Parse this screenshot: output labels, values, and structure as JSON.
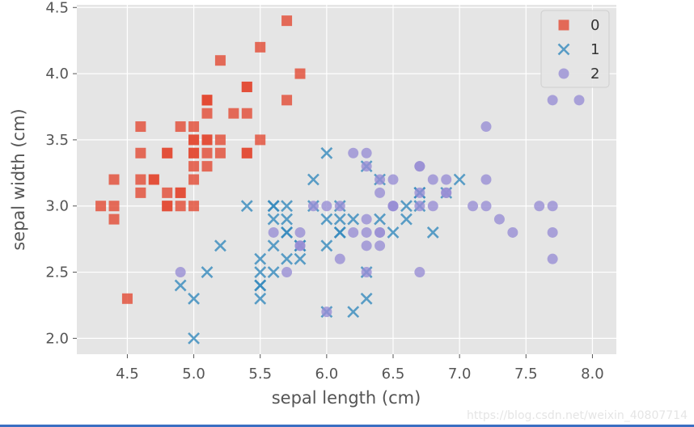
{
  "chart_data": {
    "type": "scatter",
    "title": "",
    "xlabel": "sepal length (cm)",
    "ylabel": "sepal width (cm)",
    "xlim": [
      4.12,
      8.18
    ],
    "ylim": [
      1.88,
      4.52
    ],
    "x_ticks": [
      "4.5",
      "5.0",
      "5.5",
      "6.0",
      "6.5",
      "7.0",
      "7.5",
      "8.0"
    ],
    "y_ticks": [
      "2.0",
      "2.5",
      "3.0",
      "3.5",
      "4.0",
      "4.5"
    ],
    "grid": true,
    "legend_position": "top-right",
    "series": [
      {
        "name": "0",
        "marker": "square",
        "color": "#E24A33",
        "points": [
          [
            5.1,
            3.5
          ],
          [
            4.9,
            3.0
          ],
          [
            4.7,
            3.2
          ],
          [
            4.6,
            3.1
          ],
          [
            5.0,
            3.6
          ],
          [
            5.4,
            3.9
          ],
          [
            4.6,
            3.4
          ],
          [
            5.0,
            3.4
          ],
          [
            4.4,
            2.9
          ],
          [
            4.9,
            3.1
          ],
          [
            5.4,
            3.7
          ],
          [
            4.8,
            3.4
          ],
          [
            4.8,
            3.0
          ],
          [
            4.3,
            3.0
          ],
          [
            5.8,
            4.0
          ],
          [
            5.7,
            4.4
          ],
          [
            5.4,
            3.9
          ],
          [
            5.1,
            3.5
          ],
          [
            5.7,
            3.8
          ],
          [
            5.1,
            3.8
          ],
          [
            5.4,
            3.4
          ],
          [
            5.1,
            3.7
          ],
          [
            4.6,
            3.6
          ],
          [
            5.1,
            3.3
          ],
          [
            4.8,
            3.4
          ],
          [
            5.0,
            3.0
          ],
          [
            5.0,
            3.4
          ],
          [
            5.2,
            3.5
          ],
          [
            5.2,
            3.4
          ],
          [
            4.7,
            3.2
          ],
          [
            4.8,
            3.1
          ],
          [
            5.4,
            3.4
          ],
          [
            5.2,
            4.1
          ],
          [
            5.5,
            4.2
          ],
          [
            4.9,
            3.1
          ],
          [
            5.0,
            3.2
          ],
          [
            5.5,
            3.5
          ],
          [
            4.9,
            3.6
          ],
          [
            4.4,
            3.0
          ],
          [
            5.1,
            3.4
          ],
          [
            5.0,
            3.5
          ],
          [
            4.5,
            2.3
          ],
          [
            4.4,
            3.2
          ],
          [
            5.0,
            3.5
          ],
          [
            5.1,
            3.8
          ],
          [
            4.8,
            3.0
          ],
          [
            5.1,
            3.8
          ],
          [
            4.6,
            3.2
          ],
          [
            5.3,
            3.7
          ],
          [
            5.0,
            3.3
          ]
        ]
      },
      {
        "name": "1",
        "marker": "x",
        "color": "#348ABD",
        "points": [
          [
            7.0,
            3.2
          ],
          [
            6.4,
            3.2
          ],
          [
            6.9,
            3.1
          ],
          [
            5.5,
            2.3
          ],
          [
            6.5,
            2.8
          ],
          [
            5.7,
            2.8
          ],
          [
            6.3,
            3.3
          ],
          [
            4.9,
            2.4
          ],
          [
            6.6,
            2.9
          ],
          [
            5.2,
            2.7
          ],
          [
            5.0,
            2.0
          ],
          [
            5.9,
            3.0
          ],
          [
            6.0,
            2.2
          ],
          [
            6.1,
            2.9
          ],
          [
            5.6,
            2.9
          ],
          [
            6.7,
            3.1
          ],
          [
            5.6,
            3.0
          ],
          [
            5.8,
            2.7
          ],
          [
            6.2,
            2.2
          ],
          [
            5.6,
            2.5
          ],
          [
            5.9,
            3.2
          ],
          [
            6.1,
            2.8
          ],
          [
            6.3,
            2.5
          ],
          [
            6.1,
            2.8
          ],
          [
            6.4,
            2.9
          ],
          [
            6.6,
            3.0
          ],
          [
            6.8,
            2.8
          ],
          [
            6.7,
            3.0
          ],
          [
            6.0,
            2.9
          ],
          [
            5.7,
            2.6
          ],
          [
            5.5,
            2.4
          ],
          [
            5.5,
            2.4
          ],
          [
            5.8,
            2.7
          ],
          [
            6.0,
            2.7
          ],
          [
            5.4,
            3.0
          ],
          [
            6.0,
            3.4
          ],
          [
            6.7,
            3.1
          ],
          [
            6.3,
            2.3
          ],
          [
            5.6,
            3.0
          ],
          [
            5.5,
            2.5
          ],
          [
            5.5,
            2.6
          ],
          [
            6.1,
            3.0
          ],
          [
            5.8,
            2.6
          ],
          [
            5.0,
            2.3
          ],
          [
            5.6,
            2.7
          ],
          [
            5.7,
            3.0
          ],
          [
            5.7,
            2.9
          ],
          [
            6.2,
            2.9
          ],
          [
            5.1,
            2.5
          ],
          [
            5.7,
            2.8
          ]
        ]
      },
      {
        "name": "2",
        "marker": "circle",
        "color": "#988ED5",
        "points": [
          [
            6.3,
            3.3
          ],
          [
            5.8,
            2.7
          ],
          [
            7.1,
            3.0
          ],
          [
            6.3,
            2.9
          ],
          [
            6.5,
            3.0
          ],
          [
            7.6,
            3.0
          ],
          [
            4.9,
            2.5
          ],
          [
            7.3,
            2.9
          ],
          [
            6.7,
            2.5
          ],
          [
            7.2,
            3.6
          ],
          [
            6.5,
            3.2
          ],
          [
            6.4,
            2.7
          ],
          [
            6.8,
            3.0
          ],
          [
            5.7,
            2.5
          ],
          [
            5.8,
            2.8
          ],
          [
            6.4,
            3.2
          ],
          [
            6.5,
            3.0
          ],
          [
            7.7,
            3.8
          ],
          [
            7.7,
            2.6
          ],
          [
            6.0,
            2.2
          ],
          [
            6.9,
            3.2
          ],
          [
            5.6,
            2.8
          ],
          [
            7.7,
            2.8
          ],
          [
            6.3,
            2.7
          ],
          [
            6.7,
            3.3
          ],
          [
            7.2,
            3.2
          ],
          [
            6.2,
            2.8
          ],
          [
            6.1,
            3.0
          ],
          [
            6.4,
            2.8
          ],
          [
            7.2,
            3.0
          ],
          [
            7.4,
            2.8
          ],
          [
            7.9,
            3.8
          ],
          [
            6.4,
            2.8
          ],
          [
            6.3,
            2.8
          ],
          [
            6.1,
            2.6
          ],
          [
            7.7,
            3.0
          ],
          [
            6.3,
            3.4
          ],
          [
            6.4,
            3.1
          ],
          [
            6.0,
            3.0
          ],
          [
            6.9,
            3.1
          ],
          [
            6.7,
            3.1
          ],
          [
            6.9,
            3.1
          ],
          [
            5.8,
            2.7
          ],
          [
            6.8,
            3.2
          ],
          [
            6.7,
            3.3
          ],
          [
            6.7,
            3.0
          ],
          [
            6.3,
            2.5
          ],
          [
            6.5,
            3.0
          ],
          [
            6.2,
            3.4
          ],
          [
            5.9,
            3.0
          ]
        ]
      }
    ]
  },
  "watermark": "https://blog.csdn.net/weixin_40807714"
}
